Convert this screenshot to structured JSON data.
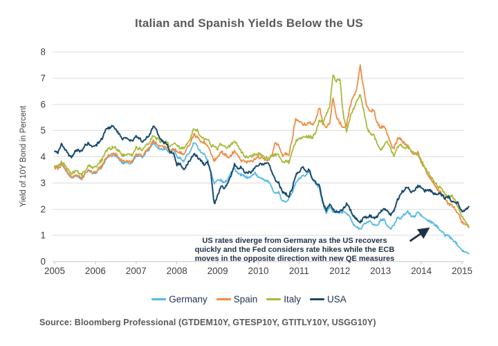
{
  "source": "Source: Bloomberg Professional (GTDEM10Y, GTESP10Y, GTITLY10Y, USGG10Y)",
  "colors": {
    "background": "#FFFFFF",
    "grid": "#DBDBDB",
    "axis_line": "#C6C6C6",
    "axis_text": "#414042",
    "title_text": "#58595B",
    "ink": "#1F3147",
    "germany": "#55B9E6",
    "spain": "#EF8C43",
    "italy": "#A6B939",
    "usa": "#17496F"
  },
  "chart_data": {
    "type": "line",
    "title": "Italian and Spanish Yields Below the US",
    "xlabel": "",
    "ylabel": "Yield of 10Y Bond in Percent",
    "ylim": [
      0,
      8
    ],
    "yticks": [
      0,
      1,
      2,
      3,
      4,
      5,
      6,
      7,
      8
    ],
    "xticks": [
      2005,
      2006,
      2007,
      2008,
      2009,
      2010,
      2011,
      2012,
      2013,
      2014,
      2015
    ],
    "x_start_year": 2005,
    "x_step": "monthly",
    "x_end_year": 2015.17,
    "grid": "horizontal",
    "legend_position": "bottom",
    "annotation": {
      "lines": [
        "US rates diverge from Germany as the US recovers",
        "quickly and the Fed considers rate hikes while the ECB",
        "moves in the opposite direction with new QE measures"
      ],
      "arrow": {
        "from_year": 2013.72,
        "from_value": 0.78,
        "to_year": 2014.2,
        "to_value": 1.27
      }
    },
    "series": [
      {
        "name": "Germany",
        "color_key": "germany",
        "values": [
          3.65,
          3.6,
          3.75,
          3.55,
          3.35,
          3.2,
          3.3,
          3.25,
          3.15,
          3.35,
          3.5,
          3.4,
          3.35,
          3.5,
          3.6,
          3.9,
          4.0,
          4.05,
          4.05,
          3.9,
          3.75,
          3.8,
          3.75,
          3.8,
          4.05,
          4.05,
          3.95,
          4.2,
          4.3,
          4.55,
          4.4,
          4.3,
          4.3,
          4.3,
          4.1,
          4.3,
          4.0,
          3.95,
          3.8,
          4.05,
          4.2,
          4.55,
          4.4,
          4.2,
          4.1,
          3.9,
          3.4,
          3.0,
          3.1,
          3.1,
          3.0,
          3.15,
          3.45,
          3.55,
          3.35,
          3.3,
          3.25,
          3.2,
          3.25,
          3.4,
          3.2,
          3.2,
          3.1,
          3.05,
          2.8,
          2.6,
          2.65,
          2.3,
          2.3,
          2.4,
          2.65,
          3.0,
          3.15,
          3.25,
          3.25,
          3.45,
          3.1,
          3.0,
          2.8,
          2.2,
          1.85,
          2.1,
          1.9,
          1.9,
          1.85,
          1.9,
          1.85,
          1.7,
          1.4,
          1.3,
          1.25,
          1.4,
          1.5,
          1.55,
          1.4,
          1.35,
          1.6,
          1.6,
          1.35,
          1.25,
          1.4,
          1.7,
          1.65,
          1.8,
          1.9,
          1.75,
          1.7,
          1.9,
          1.75,
          1.65,
          1.55,
          1.5,
          1.4,
          1.3,
          1.15,
          1.0,
          1.0,
          0.85,
          0.75,
          0.6,
          0.45,
          0.35,
          0.3
        ]
      },
      {
        "name": "Spain",
        "color_key": "spain",
        "values": [
          3.6,
          3.55,
          3.7,
          3.55,
          3.35,
          3.2,
          3.3,
          3.25,
          3.15,
          3.35,
          3.5,
          3.4,
          3.4,
          3.55,
          3.65,
          3.95,
          4.05,
          4.1,
          4.1,
          3.95,
          3.8,
          3.85,
          3.8,
          3.85,
          4.1,
          4.1,
          4.0,
          4.25,
          4.35,
          4.6,
          4.5,
          4.4,
          4.35,
          4.35,
          4.2,
          4.35,
          4.2,
          4.15,
          4.1,
          4.35,
          4.5,
          4.85,
          4.75,
          4.55,
          4.55,
          4.45,
          4.15,
          3.85,
          4.0,
          4.2,
          4.1,
          4.0,
          4.05,
          4.25,
          4.05,
          3.85,
          3.8,
          3.8,
          3.8,
          3.95,
          4.0,
          3.95,
          3.85,
          3.9,
          4.1,
          4.55,
          4.4,
          4.05,
          4.1,
          4.05,
          4.7,
          5.45,
          5.35,
          5.25,
          5.25,
          5.3,
          5.25,
          5.45,
          5.9,
          5.25,
          5.15,
          5.25,
          6.25,
          5.5,
          5.3,
          5.1,
          5.2,
          5.9,
          6.3,
          6.6,
          7.5,
          6.6,
          5.9,
          5.7,
          5.8,
          5.3,
          5.1,
          5.2,
          4.9,
          4.5,
          4.3,
          4.7,
          4.65,
          4.5,
          4.4,
          4.2,
          4.1,
          4.15,
          3.8,
          3.55,
          3.3,
          3.1,
          2.9,
          2.7,
          2.6,
          2.4,
          2.2,
          2.15,
          2.0,
          1.8,
          1.5,
          1.4,
          1.35
        ]
      },
      {
        "name": "Italy",
        "color_key": "italy",
        "values": [
          3.65,
          3.6,
          3.8,
          3.7,
          3.5,
          3.35,
          3.45,
          3.4,
          3.3,
          3.5,
          3.65,
          3.6,
          3.6,
          3.75,
          3.9,
          4.2,
          4.3,
          4.35,
          4.35,
          4.2,
          4.05,
          4.1,
          4.05,
          4.1,
          4.35,
          4.3,
          4.25,
          4.45,
          4.55,
          4.8,
          4.7,
          4.6,
          4.55,
          4.55,
          4.4,
          4.55,
          4.4,
          4.35,
          4.3,
          4.5,
          4.7,
          5.1,
          5.0,
          4.8,
          4.7,
          4.7,
          4.4,
          4.4,
          4.3,
          4.5,
          4.4,
          4.35,
          4.45,
          4.6,
          4.4,
          4.2,
          4.0,
          4.0,
          4.0,
          4.1,
          4.1,
          4.05,
          3.95,
          4.0,
          4.0,
          4.1,
          4.05,
          3.8,
          3.85,
          3.8,
          4.2,
          4.6,
          4.7,
          4.75,
          4.8,
          4.75,
          4.75,
          4.9,
          5.4,
          5.3,
          5.6,
          5.9,
          7.1,
          6.9,
          7.0,
          5.6,
          5.0,
          5.5,
          5.8,
          6.1,
          6.4,
          5.8,
          5.1,
          4.9,
          4.8,
          4.5,
          4.2,
          4.45,
          4.6,
          4.3,
          4.0,
          4.4,
          4.45,
          4.3,
          4.4,
          4.2,
          4.1,
          4.1,
          3.9,
          3.6,
          3.4,
          3.2,
          3.0,
          2.85,
          2.8,
          2.6,
          2.4,
          2.5,
          2.3,
          2.0,
          1.7,
          1.55,
          1.3
        ]
      },
      {
        "name": "USA",
        "color_key": "usa",
        "values": [
          4.2,
          4.15,
          4.5,
          4.3,
          4.1,
          4.0,
          4.2,
          4.25,
          4.2,
          4.45,
          4.5,
          4.4,
          4.4,
          4.55,
          4.7,
          5.0,
          5.1,
          5.15,
          5.05,
          4.85,
          4.65,
          4.75,
          4.6,
          4.6,
          4.8,
          4.7,
          4.55,
          4.7,
          4.85,
          5.15,
          5.0,
          4.7,
          4.55,
          4.5,
          4.2,
          4.1,
          3.7,
          3.75,
          3.5,
          3.7,
          3.9,
          4.1,
          4.0,
          3.85,
          3.7,
          3.8,
          3.4,
          2.2,
          2.5,
          2.9,
          2.8,
          2.95,
          3.3,
          3.7,
          3.55,
          3.6,
          3.4,
          3.4,
          3.4,
          3.6,
          3.7,
          3.7,
          3.75,
          3.8,
          3.4,
          3.1,
          3.0,
          2.65,
          2.6,
          2.5,
          2.8,
          3.3,
          3.4,
          3.6,
          3.45,
          3.5,
          3.15,
          3.0,
          2.95,
          2.25,
          1.95,
          2.15,
          2.0,
          1.9,
          1.9,
          2.0,
          2.2,
          2.0,
          1.75,
          1.6,
          1.5,
          1.65,
          1.7,
          1.75,
          1.65,
          1.7,
          1.9,
          2.0,
          1.95,
          1.75,
          1.95,
          2.35,
          2.6,
          2.75,
          2.85,
          2.6,
          2.7,
          2.9,
          2.85,
          2.7,
          2.7,
          2.7,
          2.55,
          2.6,
          2.55,
          2.4,
          2.5,
          2.3,
          2.3,
          2.2,
          1.9,
          2.0,
          2.1
        ]
      }
    ]
  }
}
